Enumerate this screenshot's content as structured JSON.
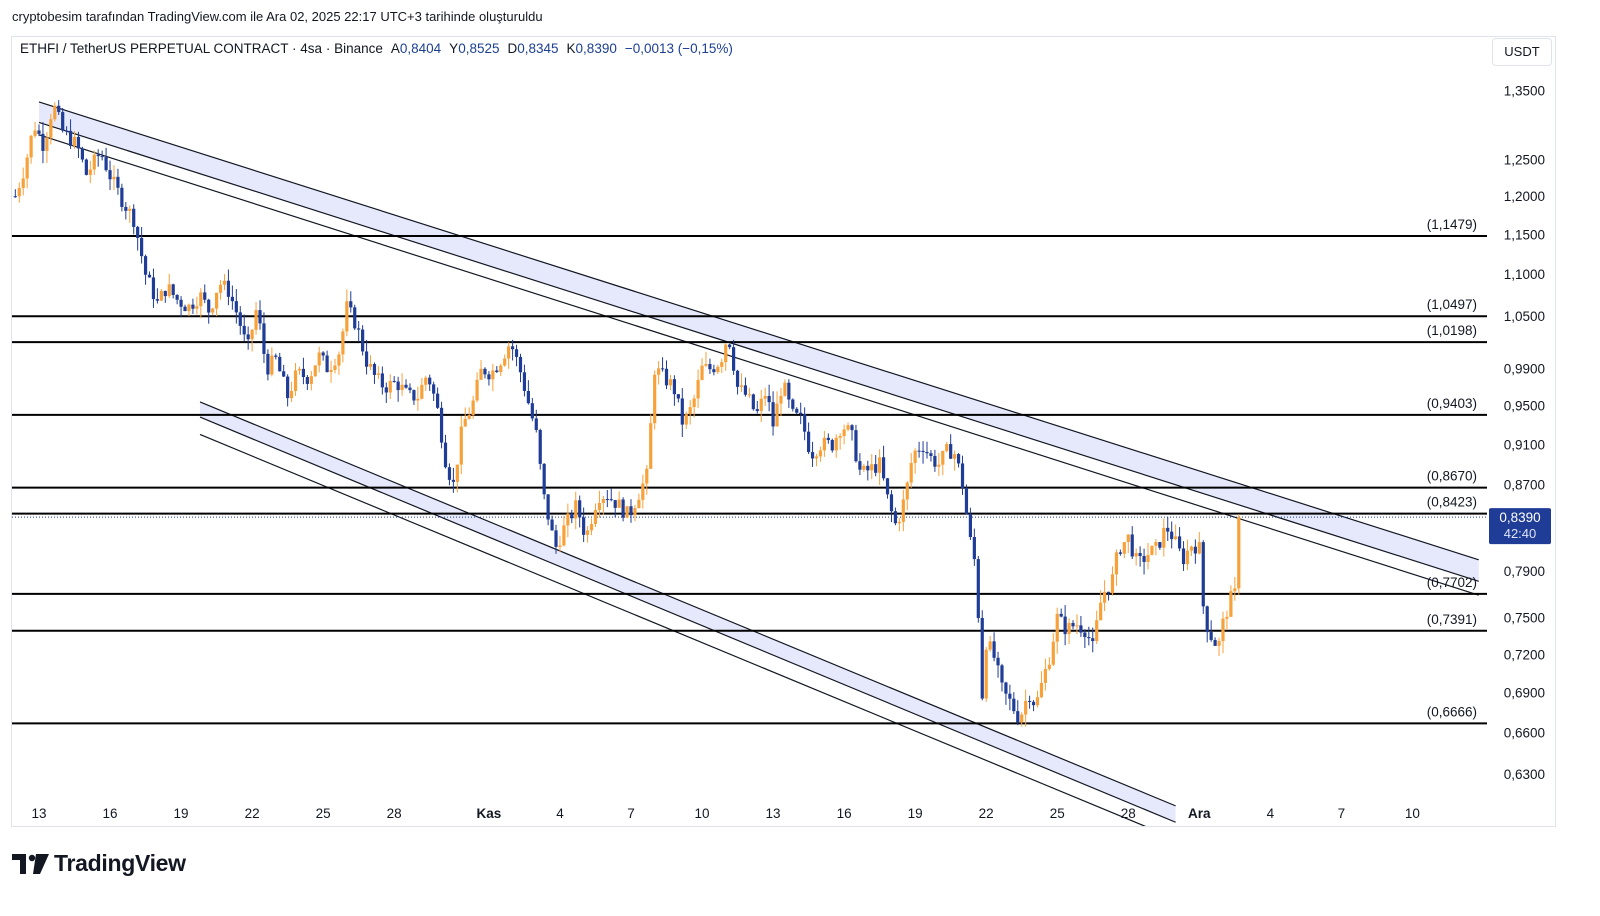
{
  "header": {
    "caption": "cryptobesim tarafından TradingView.com ile Ara 02, 2025 22:17 UTC+3 tarihinde oluşturuldu"
  },
  "legend": {
    "symbol": "ETHFI / TetherUS PERPETUAL CONTRACT · 4sa · Binance",
    "open_label": "A",
    "open": "0,8404",
    "high_label": "Y",
    "high": "0,8525",
    "low_label": "D",
    "low": "0,8345",
    "close_label": "K",
    "close": "0,8390",
    "change": "−0,0013 (−0,15%)"
  },
  "currency": "USDT",
  "brand": {
    "name": "TradingView"
  },
  "colors": {
    "up": "#f7a13a",
    "down": "#1f3c96",
    "level_line": "#000000",
    "channel_fill": "#e6e9fb",
    "price_tag": "#1f3c96"
  },
  "chart_data": {
    "type": "candlestick",
    "y_scale": "log",
    "ylim": [
      0.612,
      1.4
    ],
    "y_ticks": [
      {
        "v": 1.35,
        "label": "1,3500"
      },
      {
        "v": 1.25,
        "label": "1,2500"
      },
      {
        "v": 1.2,
        "label": "1,2000"
      },
      {
        "v": 1.15,
        "label": "1,1500"
      },
      {
        "v": 1.1,
        "label": "1,1000"
      },
      {
        "v": 1.05,
        "label": "1,0500"
      },
      {
        "v": 0.99,
        "label": "0,9900"
      },
      {
        "v": 0.95,
        "label": "0,9500"
      },
      {
        "v": 0.91,
        "label": "0,9100"
      },
      {
        "v": 0.87,
        "label": "0,8700"
      },
      {
        "v": 0.79,
        "label": "0,7900"
      },
      {
        "v": 0.75,
        "label": "0,7500"
      },
      {
        "v": 0.72,
        "label": "0,7200"
      },
      {
        "v": 0.69,
        "label": "0,6900"
      },
      {
        "v": 0.66,
        "label": "0,6600"
      },
      {
        "v": 0.63,
        "label": "0,6300"
      }
    ],
    "x_ticks": [
      {
        "t": 13,
        "label": "13",
        "bold": false
      },
      {
        "t": 16,
        "label": "16",
        "bold": false
      },
      {
        "t": 19,
        "label": "19",
        "bold": false
      },
      {
        "t": 22,
        "label": "22",
        "bold": false
      },
      {
        "t": 25,
        "label": "25",
        "bold": false
      },
      {
        "t": 28,
        "label": "28",
        "bold": false
      },
      {
        "t": 32,
        "label": "Kas",
        "bold": true
      },
      {
        "t": 35,
        "label": "4",
        "bold": false
      },
      {
        "t": 38,
        "label": "7",
        "bold": false
      },
      {
        "t": 41,
        "label": "10",
        "bold": false
      },
      {
        "t": 44,
        "label": "13",
        "bold": false
      },
      {
        "t": 47,
        "label": "16",
        "bold": false
      },
      {
        "t": 50,
        "label": "19",
        "bold": false
      },
      {
        "t": 53,
        "label": "22",
        "bold": false
      },
      {
        "t": 56,
        "label": "25",
        "bold": false
      },
      {
        "t": 59,
        "label": "28",
        "bold": false
      },
      {
        "t": 62,
        "label": "Ara",
        "bold": true
      },
      {
        "t": 65,
        "label": "4",
        "bold": false
      },
      {
        "t": 68,
        "label": "7",
        "bold": false
      },
      {
        "t": 71,
        "label": "10",
        "bold": false
      }
    ],
    "levels": [
      {
        "value": 1.1479,
        "label": "(1,1479)"
      },
      {
        "value": 1.0497,
        "label": "(1,0497)"
      },
      {
        "value": 1.0198,
        "label": "(1,0198)"
      },
      {
        "value": 0.9403,
        "label": "(0,9403)"
      },
      {
        "value": 0.867,
        "label": "(0,8670)"
      },
      {
        "value": 0.8423,
        "label": "(0,8423)"
      },
      {
        "value": 0.7702,
        "label": "(0,7702)"
      },
      {
        "value": 0.7391,
        "label": "(0,7391)"
      },
      {
        "value": 0.6666,
        "label": "(0,6666)"
      }
    ],
    "channels": [
      {
        "name": "descending-upper-channel",
        "t1": 13.0,
        "t2": 73.8,
        "upper": [
          1.333,
          0.8
        ],
        "lower": [
          1.303,
          0.781
        ],
        "outer": [
          1.285,
          0.769
        ]
      },
      {
        "name": "descending-lower-channel",
        "t1": 19.8,
        "t2": 61.0,
        "upper": [
          0.954,
          0.608
        ],
        "lower": [
          0.938,
          0.597
        ],
        "outer": [
          0.92,
          0.586
        ]
      }
    ],
    "current_price": {
      "value": 0.839,
      "label": "0,8390",
      "countdown": "42:40"
    },
    "path": [
      [
        12.0,
        1.2
      ],
      [
        12.4,
        1.24
      ],
      [
        12.8,
        1.3
      ],
      [
        13.2,
        1.27
      ],
      [
        13.6,
        1.33
      ],
      [
        14.0,
        1.29
      ],
      [
        14.6,
        1.27
      ],
      [
        15.0,
        1.23
      ],
      [
        15.6,
        1.26
      ],
      [
        16.1,
        1.22
      ],
      [
        16.6,
        1.19
      ],
      [
        17.0,
        1.17
      ],
      [
        17.5,
        1.1
      ],
      [
        18.0,
        1.065
      ],
      [
        18.4,
        1.085
      ],
      [
        18.8,
        1.07
      ],
      [
        19.3,
        1.06
      ],
      [
        19.8,
        1.075
      ],
      [
        20.2,
        1.055
      ],
      [
        20.6,
        1.09
      ],
      [
        21.0,
        1.08
      ],
      [
        21.4,
        1.05
      ],
      [
        21.8,
        1.01
      ],
      [
        22.2,
        1.06
      ],
      [
        22.6,
        0.99
      ],
      [
        23.0,
        1.0
      ],
      [
        23.5,
        0.96
      ],
      [
        23.9,
        0.985
      ],
      [
        24.4,
        0.98
      ],
      [
        24.8,
        1.005
      ],
      [
        25.2,
        0.99
      ],
      [
        25.7,
        1.01
      ],
      [
        26.0,
        1.06
      ],
      [
        26.4,
        1.04
      ],
      [
        26.8,
        1.0
      ],
      [
        27.2,
        0.98
      ],
      [
        27.6,
        0.97
      ],
      [
        28.1,
        0.975
      ],
      [
        28.6,
        0.96
      ],
      [
        29.0,
        0.96
      ],
      [
        29.4,
        0.985
      ],
      [
        29.8,
        0.95
      ],
      [
        30.2,
        0.89
      ],
      [
        30.5,
        0.87
      ],
      [
        30.9,
        0.93
      ],
      [
        31.3,
        0.95
      ],
      [
        31.7,
        0.99
      ],
      [
        32.1,
        0.985
      ],
      [
        32.5,
        1.0
      ],
      [
        32.9,
        1.02
      ],
      [
        33.3,
        0.99
      ],
      [
        33.7,
        0.95
      ],
      [
        34.0,
        0.92
      ],
      [
        34.3,
        0.86
      ],
      [
        34.8,
        0.81
      ],
      [
        35.2,
        0.83
      ],
      [
        35.7,
        0.85
      ],
      [
        36.1,
        0.82
      ],
      [
        36.6,
        0.86
      ],
      [
        37.0,
        0.86
      ],
      [
        37.5,
        0.85
      ],
      [
        37.9,
        0.84
      ],
      [
        38.3,
        0.86
      ],
      [
        38.7,
        0.88
      ],
      [
        39.0,
        0.99
      ],
      [
        39.4,
        0.98
      ],
      [
        39.8,
        0.97
      ],
      [
        40.2,
        0.93
      ],
      [
        40.6,
        0.95
      ],
      [
        41.0,
        0.99
      ],
      [
        41.4,
        0.99
      ],
      [
        41.8,
        1.0
      ],
      [
        42.1,
        1.03
      ],
      [
        42.5,
        0.97
      ],
      [
        42.9,
        0.96
      ],
      [
        43.3,
        0.94
      ],
      [
        43.7,
        0.965
      ],
      [
        44.0,
        0.93
      ],
      [
        44.4,
        0.975
      ],
      [
        44.8,
        0.94
      ],
      [
        45.2,
        0.935
      ],
      [
        45.6,
        0.9
      ],
      [
        46.0,
        0.91
      ],
      [
        46.5,
        0.91
      ],
      [
        46.9,
        0.93
      ],
      [
        47.3,
        0.92
      ],
      [
        47.7,
        0.88
      ],
      [
        48.1,
        0.885
      ],
      [
        48.5,
        0.89
      ],
      [
        48.9,
        0.85
      ],
      [
        49.2,
        0.83
      ],
      [
        49.6,
        0.86
      ],
      [
        49.9,
        0.9
      ],
      [
        50.3,
        0.91
      ],
      [
        50.7,
        0.895
      ],
      [
        51.0,
        0.89
      ],
      [
        51.4,
        0.905
      ],
      [
        51.7,
        0.9
      ],
      [
        52.0,
        0.87
      ],
      [
        52.3,
        0.82
      ],
      [
        52.6,
        0.79
      ],
      [
        52.8,
        0.68
      ],
      [
        53.0,
        0.73
      ],
      [
        53.3,
        0.72
      ],
      [
        53.7,
        0.69
      ],
      [
        54.0,
        0.683
      ],
      [
        54.4,
        0.67
      ],
      [
        54.8,
        0.69
      ],
      [
        55.1,
        0.68
      ],
      [
        55.4,
        0.7
      ],
      [
        55.7,
        0.72
      ],
      [
        56.0,
        0.75
      ],
      [
        56.4,
        0.74
      ],
      [
        56.8,
        0.745
      ],
      [
        57.2,
        0.74
      ],
      [
        57.5,
        0.725
      ],
      [
        57.9,
        0.77
      ],
      [
        58.3,
        0.78
      ],
      [
        58.6,
        0.81
      ],
      [
        59.0,
        0.82
      ],
      [
        59.4,
        0.795
      ],
      [
        59.8,
        0.805
      ],
      [
        60.2,
        0.81
      ],
      [
        60.6,
        0.83
      ],
      [
        60.9,
        0.82
      ],
      [
        61.3,
        0.8
      ],
      [
        61.7,
        0.815
      ],
      [
        62.0,
        0.81
      ],
      [
        62.2,
        0.75
      ],
      [
        62.5,
        0.735
      ],
      [
        62.8,
        0.725
      ],
      [
        63.0,
        0.745
      ],
      [
        63.3,
        0.765
      ],
      [
        63.5,
        0.77
      ],
      [
        63.8,
        0.839
      ]
    ]
  }
}
